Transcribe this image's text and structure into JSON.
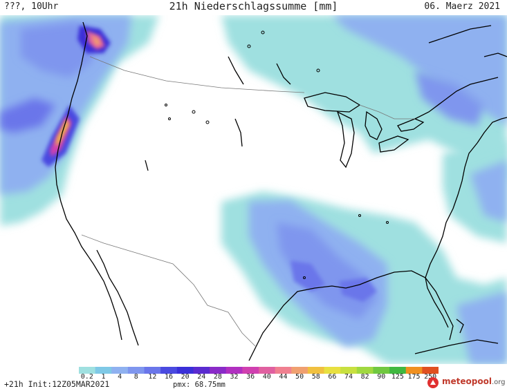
{
  "header": {
    "left": "???, 10Uhr",
    "title": "21h Niederschlagssumme [mm]",
    "date": "06. Maerz 2021"
  },
  "legend": {
    "ticks": [
      "0.2",
      "1",
      "4",
      "8",
      "12",
      "16",
      "20",
      "24",
      "28",
      "32",
      "36",
      "40",
      "44",
      "50",
      "58",
      "66",
      "74",
      "82",
      "90",
      "125",
      "175",
      "250"
    ],
    "colors": [
      "#9fe0e0",
      "#7fc9e6",
      "#8fb1f0",
      "#7f96ee",
      "#6a76ea",
      "#4a4ae0",
      "#3a2fd8",
      "#5a2bd0",
      "#8a2bc8",
      "#b030c0",
      "#d040b0",
      "#e060a0",
      "#f08090",
      "#f0a070",
      "#f0c040",
      "#e8e040",
      "#c8e040",
      "#a0d840",
      "#70c840",
      "#40b840",
      "#f09020",
      "#e05020"
    ]
  },
  "footer": {
    "run_info": "+21h Init:12Z05MAR2021",
    "pmx": "pmx: 68.75mm",
    "logo": "meteopool",
    "logo_tld": ".org"
  }
}
